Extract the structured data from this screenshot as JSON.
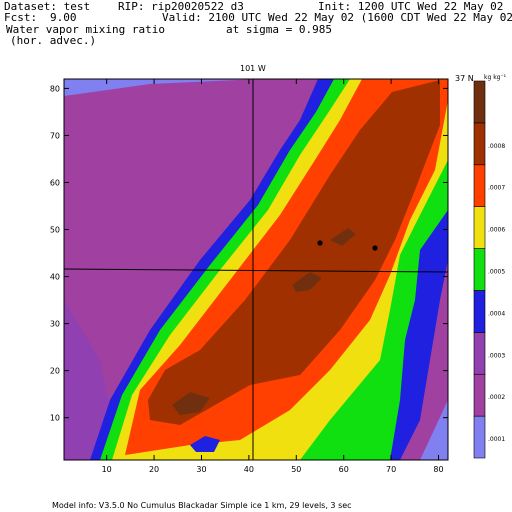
{
  "header": {
    "dataset": "Dataset: test",
    "rip": "RIP: rip20020522 d3",
    "init": "Init: 1200 UTC Wed 22 May 02",
    "fcst": "Fcst:",
    "fcst_value": "9.00",
    "valid": "Valid: 2100 UTC Wed 22 May 02 (1600 CDT Wed 22 May 02)",
    "field_line1": "Water vapor mixing ratio",
    "field_line2": "(hor. advec.)",
    "sigma": "at sigma = 0.985"
  },
  "footer": {
    "model_info": "Model info: V3.5.0   No Cumulus   Blackadar   Simple ice     1 km,  29 levels,    3 sec"
  },
  "map_labels": {
    "meridian": "101 W",
    "parallel": "37 N"
  },
  "colorbar": {
    "unit": "kg kg⁻¹",
    "colors": [
      "#8080f0",
      "#a040a0",
      "#9040b0",
      "#2020e0",
      "#10e010",
      "#f0e010",
      "#ff4000",
      "#a03000",
      "#703010"
    ],
    "labels": [
      ".0001",
      ".0002",
      ".0003",
      ".0004",
      ".0005",
      ".0006",
      ".0007",
      ".0008"
    ]
  },
  "chart_data": {
    "type": "heatmap",
    "title": "Water vapor mixing ratio (hor. advec.)",
    "x_ticks": [
      "10",
      "20",
      "30",
      "40",
      "50",
      "60",
      "70",
      "80"
    ],
    "y_ticks": [
      "10",
      "20",
      "30",
      "40",
      "50",
      "60",
      "70",
      "80"
    ],
    "xlim": [
      1,
      82
    ],
    "ylim": [
      1,
      82
    ],
    "levels": [
      0.0001,
      0.0002,
      0.0003,
      0.0004,
      0.0005,
      0.0006,
      0.0007,
      0.0008
    ],
    "grid": false
  }
}
